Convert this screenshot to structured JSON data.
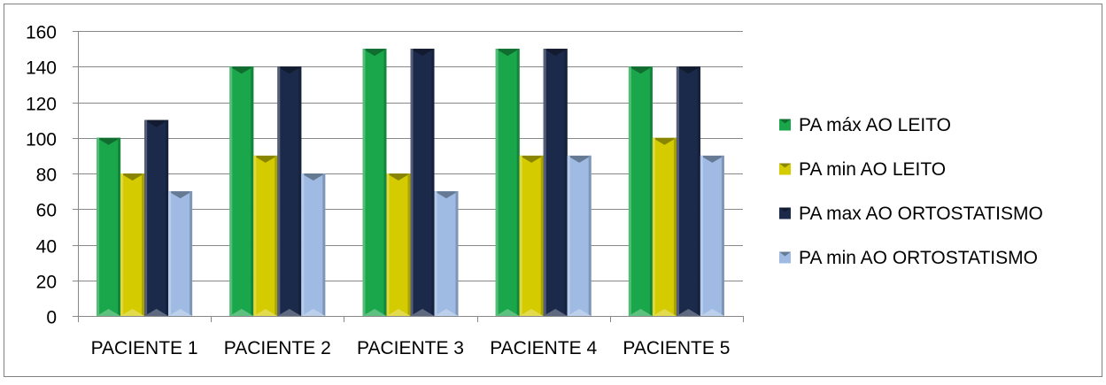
{
  "chart_data": {
    "type": "bar",
    "title": "",
    "xlabel": "",
    "ylabel": "",
    "categories": [
      "PACIENTE 1",
      "PACIENTE 2",
      "PACIENTE 3",
      "PACIENTE 4",
      "PACIENTE 5"
    ],
    "ylim": [
      0,
      160
    ],
    "yticks": [
      0,
      20,
      40,
      60,
      80,
      100,
      120,
      140,
      160
    ],
    "grid": true,
    "legend_position": "right",
    "series": [
      {
        "name": "PA máx AO LEITO",
        "values": [
          100,
          140,
          150,
          150,
          140
        ],
        "color": "#1aa64a"
      },
      {
        "name": "PA min AO LEITO",
        "values": [
          80,
          90,
          80,
          90,
          100
        ],
        "color": "#d4cc00"
      },
      {
        "name": "PA max AO ORTOSTATISMO",
        "values": [
          110,
          140,
          150,
          150,
          140
        ],
        "color": "#1b2a4a"
      },
      {
        "name": "PA min AO ORTOSTATISMO",
        "values": [
          70,
          80,
          70,
          90,
          90
        ],
        "color": "#9fbbe3"
      }
    ]
  }
}
